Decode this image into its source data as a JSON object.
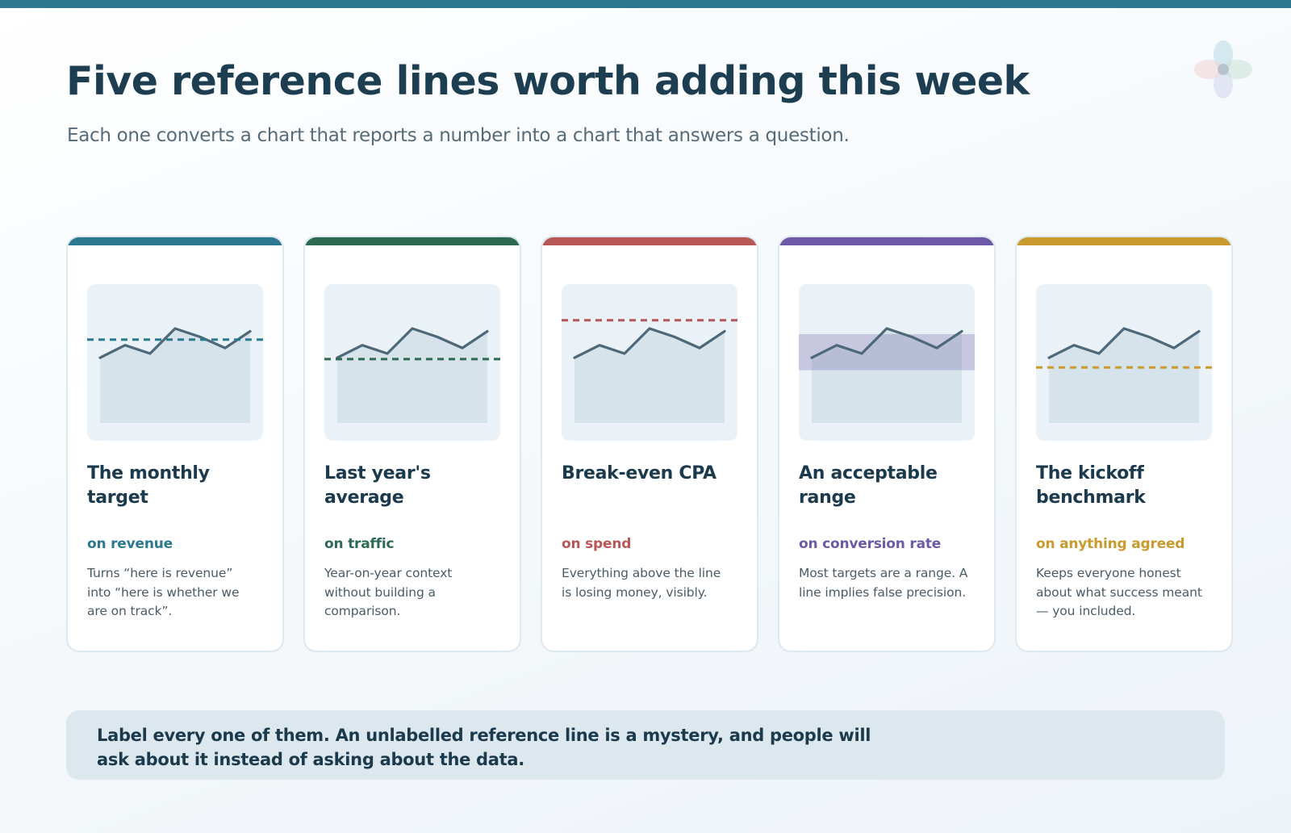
{
  "header": {
    "title": "Five reference lines worth adding this week",
    "subtitle": "Each one converts a chart that reports a number into a chart that answers a question."
  },
  "colors": {
    "top_bar": "#2c7891",
    "line": "#4d6878",
    "area": "#d6e3ea",
    "chart_bg": "#eaf2f7"
  },
  "cards": [
    {
      "title": "The monthly target",
      "tag": "on revenue",
      "description": "Turns “here is revenue” into “here is whether we are on track”.",
      "accent": "#2c7891",
      "reference": {
        "kind": "line",
        "level": 0.6
      }
    },
    {
      "title": "Last year's average",
      "tag": "on traffic",
      "description": "Year-on-year context without building a comparison.",
      "accent": "#2d6a52",
      "reference": {
        "kind": "line",
        "level": 0.46
      }
    },
    {
      "title": "Break-even CPA",
      "tag": "on spend",
      "description": "Everything above the line is losing money, visibly.",
      "accent": "#b85757",
      "reference": {
        "kind": "line",
        "level": 0.74
      }
    },
    {
      "title": "An acceptable range",
      "tag": "on conversion rate",
      "description": "Most targets are a range. A line implies false precision.",
      "accent": "#6d5aa6",
      "reference": {
        "kind": "band",
        "low": 0.38,
        "high": 0.64
      }
    },
    {
      "title": "The kickoff benchmark",
      "tag": "on anything agreed",
      "description": "Keeps everyone honest about what success meant — you included.",
      "accent": "#c99a2e",
      "reference": {
        "kind": "line",
        "level": 0.4
      }
    }
  ],
  "chart_data": {
    "type": "line",
    "x": [
      0,
      1,
      2,
      3,
      4,
      5,
      6
    ],
    "y": [
      0.47,
      0.56,
      0.5,
      0.68,
      0.62,
      0.54,
      0.66
    ],
    "ylim": [
      0,
      1
    ]
  },
  "note": {
    "text": "Label every one of them. An unlabelled reference line is a mystery, and people will ask about it instead of asking about the data."
  }
}
